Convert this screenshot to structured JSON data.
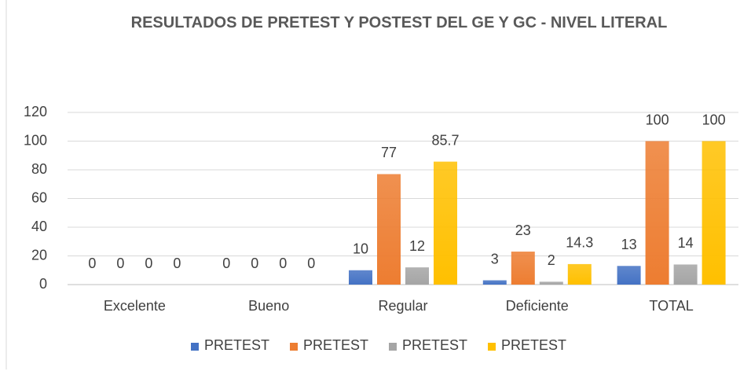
{
  "chart_data": {
    "type": "bar",
    "title": "RESULTADOS DE PRETEST Y POSTEST DEL GE Y GC - NIVEL LITERAL",
    "categories": [
      "Excelente",
      "Bueno",
      "Regular",
      "Deficiente",
      "TOTAL"
    ],
    "series": [
      {
        "name": "PRETEST",
        "color": "#4472c4",
        "values": [
          0,
          0,
          10,
          3,
          13
        ]
      },
      {
        "name": "PRETEST",
        "color": "#ed7d31",
        "values": [
          0,
          0,
          77,
          23,
          100
        ]
      },
      {
        "name": "PRETEST",
        "color": "#a5a5a5",
        "values": [
          0,
          0,
          12,
          2,
          14
        ]
      },
      {
        "name": "PRETEST",
        "color": "#ffc000",
        "values": [
          0,
          0,
          85.7,
          14.3,
          100
        ]
      }
    ],
    "ylim": [
      0,
      120
    ],
    "yticks": [
      0,
      20,
      40,
      60,
      80,
      100,
      120
    ],
    "grid": true,
    "legend": "bottom"
  }
}
